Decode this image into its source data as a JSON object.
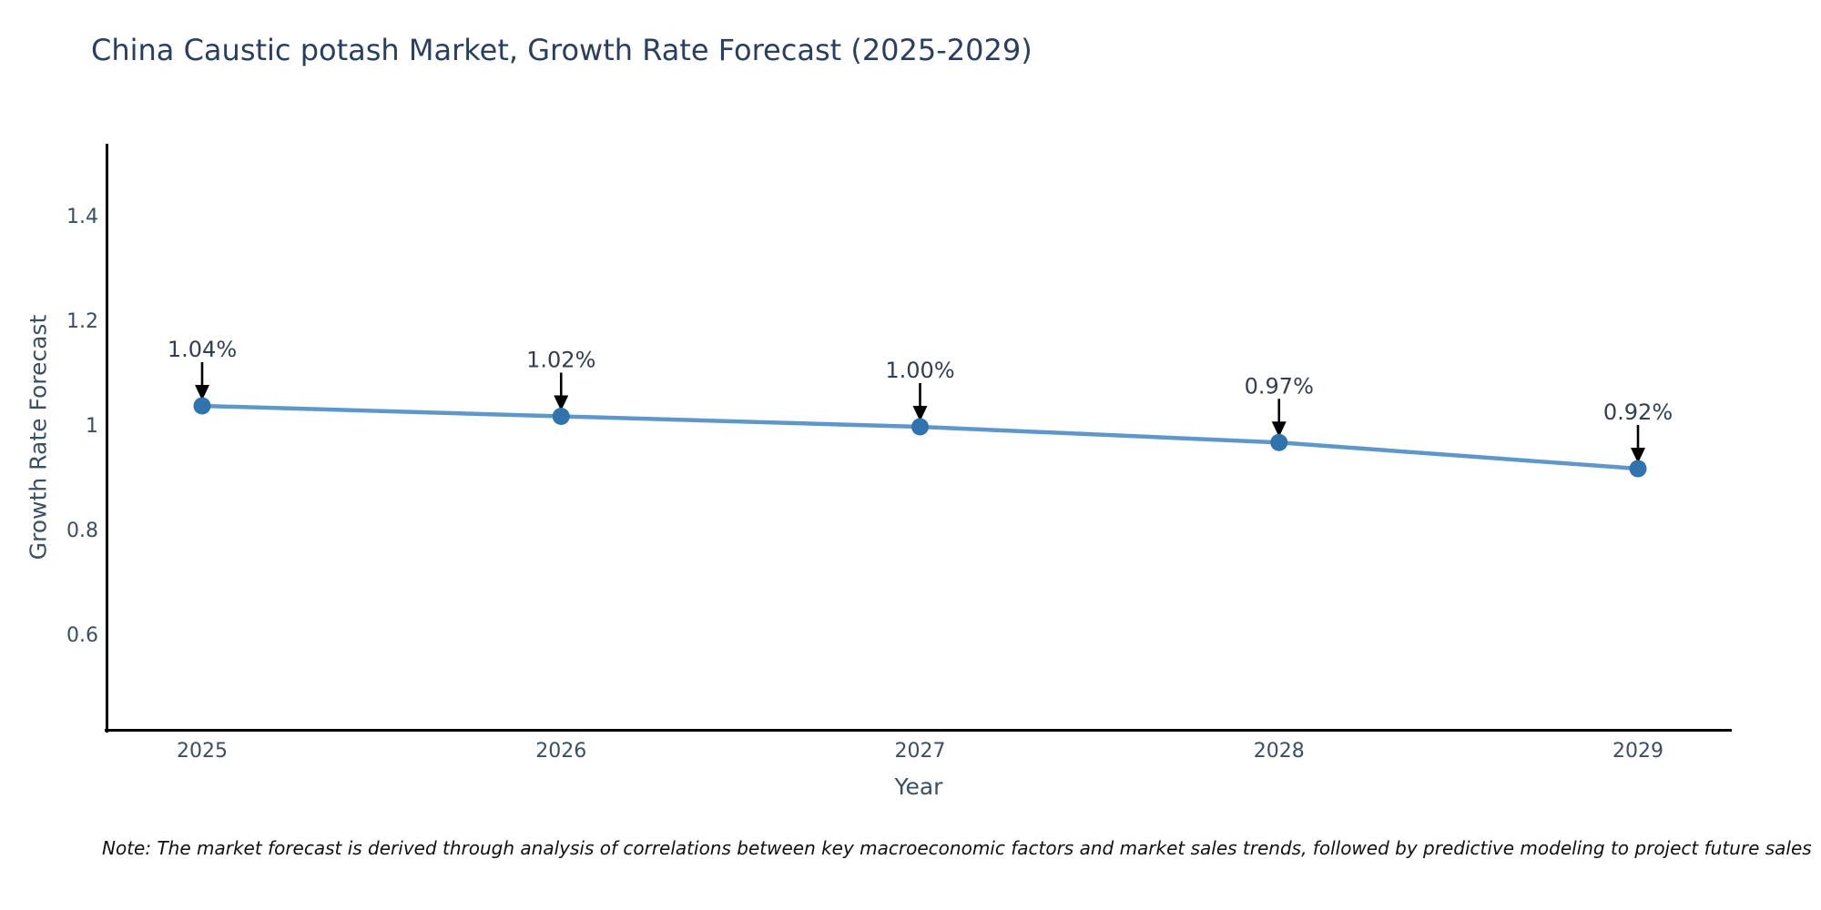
{
  "title": "China Caustic potash Market, Growth Rate Forecast (2025-2029)",
  "footnote": "Note: The market forecast is derived through analysis of correlations between key macroeconomic factors and market sales trends, followed by predictive modeling to project future sales",
  "chart_data": {
    "type": "line",
    "x": [
      2025,
      2026,
      2027,
      2028,
      2029
    ],
    "x_tick_labels": [
      "2025",
      "2026",
      "2027",
      "2028",
      "2029"
    ],
    "values": [
      1.04,
      1.02,
      1.0,
      0.97,
      0.92
    ],
    "point_labels": [
      "1.04%",
      "1.02%",
      "1.00%",
      "0.97%",
      "0.92%"
    ],
    "xlabel": "Year",
    "ylabel": "Growth Rate Forecast",
    "y_ticks": [
      1.4,
      1.2,
      1.0,
      0.8,
      0.6
    ],
    "y_tick_labels": [
      "1.4",
      "1.2",
      "1",
      "0.8",
      "0.6"
    ],
    "ylim": [
      0.42,
      1.55
    ],
    "xlim": [
      2024.73,
      2029.26
    ],
    "grid": false,
    "legend": "none",
    "colors": {
      "line": "#4d8cc4",
      "marker": "#2f74ae",
      "arrow": "#000000",
      "annotation_text": "#333f4f",
      "axis_text": "#3b4f63",
      "title_text": "#2a3f5f",
      "spine": "#000000"
    }
  }
}
